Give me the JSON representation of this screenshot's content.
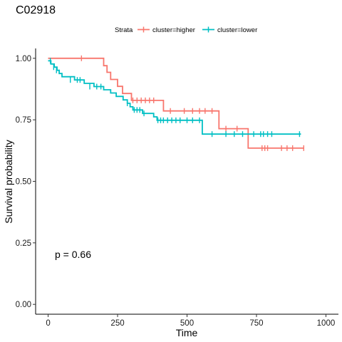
{
  "chart_data": {
    "type": "line",
    "title": "C02918",
    "xlabel": "Time",
    "ylabel": "Survival probability",
    "xlim": [
      -45,
      1045
    ],
    "ylim": [
      -0.04,
      1.04
    ],
    "x_ticks": [
      0,
      250,
      500,
      750,
      1000
    ],
    "y_ticks": [
      0.0,
      0.25,
      0.5,
      0.75,
      1.0
    ],
    "y_tick_labels": [
      "0.00",
      "0.25",
      "0.50",
      "0.75",
      "1.00"
    ],
    "grid": false,
    "legend": {
      "title": "Strata",
      "position": "top"
    },
    "annotation": "p = 0.66",
    "series": [
      {
        "name": "cluster=higher",
        "color": "#F8766D",
        "steps": [
          [
            0,
            1.0
          ],
          [
            200,
            0.97
          ],
          [
            212,
            0.943
          ],
          [
            225,
            0.914
          ],
          [
            250,
            0.886
          ],
          [
            268,
            0.857
          ],
          [
            300,
            0.829
          ],
          [
            415,
            0.786
          ],
          [
            615,
            0.714
          ],
          [
            720,
            0.635
          ],
          [
            920,
            0.635
          ]
        ],
        "censored": [
          [
            120,
            1.0
          ],
          [
            305,
            0.829
          ],
          [
            320,
            0.829
          ],
          [
            335,
            0.829
          ],
          [
            350,
            0.829
          ],
          [
            365,
            0.829
          ],
          [
            380,
            0.829
          ],
          [
            440,
            0.786
          ],
          [
            490,
            0.786
          ],
          [
            520,
            0.786
          ],
          [
            545,
            0.786
          ],
          [
            565,
            0.786
          ],
          [
            590,
            0.786
          ],
          [
            640,
            0.714
          ],
          [
            680,
            0.714
          ],
          [
            770,
            0.635
          ],
          [
            780,
            0.635
          ],
          [
            790,
            0.635
          ],
          [
            840,
            0.635
          ],
          [
            860,
            0.635
          ],
          [
            880,
            0.635
          ],
          [
            920,
            0.635
          ]
        ]
      },
      {
        "name": "cluster=lower",
        "color": "#00BFC4",
        "steps": [
          [
            0,
            0.99
          ],
          [
            10,
            0.977
          ],
          [
            22,
            0.964
          ],
          [
            32,
            0.951
          ],
          [
            40,
            0.938
          ],
          [
            50,
            0.925
          ],
          [
            95,
            0.912
          ],
          [
            130,
            0.898
          ],
          [
            165,
            0.885
          ],
          [
            200,
            0.872
          ],
          [
            225,
            0.859
          ],
          [
            245,
            0.845
          ],
          [
            270,
            0.831
          ],
          [
            285,
            0.817
          ],
          [
            295,
            0.803
          ],
          [
            305,
            0.79
          ],
          [
            340,
            0.776
          ],
          [
            380,
            0.762
          ],
          [
            392,
            0.748
          ],
          [
            555,
            0.692
          ],
          [
            910,
            0.692
          ]
        ],
        "censored": [
          [
            8,
            0.99
          ],
          [
            20,
            0.964
          ],
          [
            30,
            0.951
          ],
          [
            80,
            0.912
          ],
          [
            105,
            0.912
          ],
          [
            115,
            0.912
          ],
          [
            150,
            0.885
          ],
          [
            175,
            0.885
          ],
          [
            190,
            0.885
          ],
          [
            285,
            0.817
          ],
          [
            310,
            0.79
          ],
          [
            320,
            0.79
          ],
          [
            330,
            0.79
          ],
          [
            345,
            0.776
          ],
          [
            395,
            0.748
          ],
          [
            405,
            0.748
          ],
          [
            415,
            0.748
          ],
          [
            430,
            0.748
          ],
          [
            445,
            0.748
          ],
          [
            460,
            0.748
          ],
          [
            475,
            0.748
          ],
          [
            500,
            0.748
          ],
          [
            520,
            0.748
          ],
          [
            545,
            0.748
          ],
          [
            590,
            0.692
          ],
          [
            640,
            0.692
          ],
          [
            670,
            0.692
          ],
          [
            700,
            0.692
          ],
          [
            740,
            0.692
          ],
          [
            765,
            0.692
          ],
          [
            775,
            0.692
          ],
          [
            790,
            0.692
          ],
          [
            805,
            0.692
          ],
          [
            905,
            0.692
          ]
        ]
      }
    ]
  }
}
